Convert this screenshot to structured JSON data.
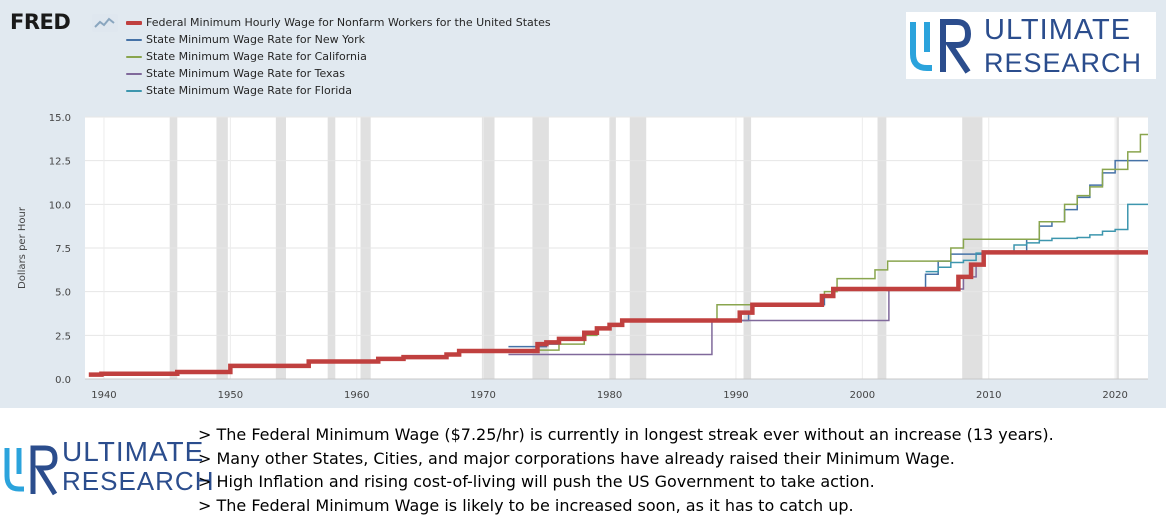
{
  "fred_logo": "FRED",
  "brand": {
    "line1": "ULTIMATE",
    "line2": "RESEARCH",
    "color": "#2b4d8d",
    "accent": "#2ba3dc"
  },
  "notes": [
    "> The Federal Minimum Wage ($7.25/hr) is currently in longest streak ever without an increase (13 years).",
    "> Many other States, Cities, and major corporations have already raised their Minimum Wage.",
    "> High Inflation and rising cost-of-living will push the US Government to take action.",
    "> The Federal Minimum Wage is likely to be increased soon, as it has to catch up."
  ],
  "chart_data": {
    "type": "line",
    "title": "",
    "xlabel": "",
    "ylabel": "Dollars per Hour",
    "xlim": [
      1938.5,
      2022.6
    ],
    "ylim": [
      0,
      15
    ],
    "x_ticks": [
      1940,
      1950,
      1960,
      1970,
      1980,
      1990,
      2000,
      2010,
      2020
    ],
    "y_ticks": [
      0.0,
      2.5,
      5.0,
      7.5,
      10.0,
      12.5,
      15.0
    ],
    "grid": true,
    "legend_position": "top-left",
    "step": true,
    "recession_shading": [
      [
        1945.2,
        1945.8
      ],
      [
        1948.9,
        1949.8
      ],
      [
        1953.6,
        1954.4
      ],
      [
        1957.7,
        1958.3
      ],
      [
        1960.3,
        1961.1
      ],
      [
        1969.9,
        1970.9
      ],
      [
        1973.9,
        1975.2
      ],
      [
        1980.0,
        1980.5
      ],
      [
        1981.6,
        1982.9
      ],
      [
        1990.6,
        1991.2
      ],
      [
        2001.2,
        2001.9
      ],
      [
        2007.9,
        2009.5
      ],
      [
        2020.1,
        2020.3
      ]
    ],
    "series": [
      {
        "name": "Federal Minimum Hourly Wage for Nonfarm Workers for the United States",
        "color": "#c0403f",
        "width": 4.5,
        "points": [
          [
            1938.8,
            0.25
          ],
          [
            1939.8,
            0.3
          ],
          [
            1945.8,
            0.4
          ],
          [
            1950.0,
            0.75
          ],
          [
            1956.2,
            1.0
          ],
          [
            1961.7,
            1.15
          ],
          [
            1963.7,
            1.25
          ],
          [
            1967.1,
            1.4
          ],
          [
            1968.1,
            1.6
          ],
          [
            1974.3,
            2.0
          ],
          [
            1975.0,
            2.1
          ],
          [
            1976.0,
            2.3
          ],
          [
            1978.0,
            2.65
          ],
          [
            1979.0,
            2.9
          ],
          [
            1980.0,
            3.1
          ],
          [
            1981.0,
            3.35
          ],
          [
            1990.3,
            3.8
          ],
          [
            1991.3,
            4.25
          ],
          [
            1996.8,
            4.75
          ],
          [
            1997.7,
            5.15
          ],
          [
            2007.6,
            5.85
          ],
          [
            2008.6,
            6.55
          ],
          [
            2009.6,
            7.25
          ],
          [
            2022.6,
            7.25
          ]
        ]
      },
      {
        "name": "State Minimum Wage Rate for New York",
        "color": "#4572a7",
        "width": 1.5,
        "points": [
          [
            1972.0,
            1.85
          ],
          [
            1975.0,
            2.0
          ],
          [
            1976.0,
            2.3
          ],
          [
            1978.0,
            2.65
          ],
          [
            1979.0,
            2.9
          ],
          [
            1980.0,
            3.1
          ],
          [
            1981.0,
            3.35
          ],
          [
            1991.0,
            3.8
          ],
          [
            1991.3,
            4.25
          ],
          [
            1997.0,
            4.75
          ],
          [
            1997.7,
            5.15
          ],
          [
            2005.0,
            6.0
          ],
          [
            2006.0,
            6.75
          ],
          [
            2007.0,
            7.15
          ],
          [
            2009.6,
            7.25
          ],
          [
            2013.0,
            8.0
          ],
          [
            2014.0,
            8.75
          ],
          [
            2015.0,
            9.0
          ],
          [
            2016.0,
            9.7
          ],
          [
            2017.0,
            10.4
          ],
          [
            2018.0,
            11.1
          ],
          [
            2019.0,
            11.8
          ],
          [
            2020.0,
            12.5
          ],
          [
            2022.6,
            12.5
          ]
        ]
      },
      {
        "name": "State Minimum Wage Rate for California",
        "color": "#89a54e",
        "width": 1.5,
        "points": [
          [
            1968.0,
            1.65
          ],
          [
            1974.0,
            1.65
          ],
          [
            1976.0,
            2.0
          ],
          [
            1978.0,
            2.5
          ],
          [
            1979.0,
            2.9
          ],
          [
            1980.0,
            3.1
          ],
          [
            1981.0,
            3.35
          ],
          [
            1988.0,
            3.35
          ],
          [
            1988.5,
            4.25
          ],
          [
            1996.8,
            4.75
          ],
          [
            1997.0,
            5.0
          ],
          [
            1998.0,
            5.75
          ],
          [
            2001.0,
            6.25
          ],
          [
            2002.0,
            6.75
          ],
          [
            2007.0,
            7.5
          ],
          [
            2008.0,
            8.0
          ],
          [
            2014.0,
            9.0
          ],
          [
            2016.0,
            10.0
          ],
          [
            2017.0,
            10.5
          ],
          [
            2018.0,
            11.0
          ],
          [
            2019.0,
            12.0
          ],
          [
            2021.0,
            13.0
          ],
          [
            2022.0,
            14.0
          ],
          [
            2022.6,
            14.0
          ]
        ]
      },
      {
        "name": "State Minimum Wage Rate for Texas",
        "color": "#80699b",
        "width": 1.5,
        "points": [
          [
            1972.0,
            1.4
          ],
          [
            1988.0,
            1.4
          ],
          [
            1988.1,
            3.35
          ],
          [
            2002.0,
            3.35
          ],
          [
            2002.1,
            5.15
          ],
          [
            2008.0,
            5.85
          ],
          [
            2009.0,
            6.55
          ],
          [
            2009.6,
            7.25
          ],
          [
            2022.6,
            7.25
          ]
        ]
      },
      {
        "name": "State Minimum Wage Rate for Florida",
        "color": "#3d96ae",
        "width": 1.5,
        "points": [
          [
            2005.0,
            6.15
          ],
          [
            2006.0,
            6.4
          ],
          [
            2007.0,
            6.67
          ],
          [
            2008.0,
            6.79
          ],
          [
            2009.0,
            7.21
          ],
          [
            2009.6,
            7.25
          ],
          [
            2011.0,
            7.31
          ],
          [
            2012.0,
            7.67
          ],
          [
            2013.0,
            7.79
          ],
          [
            2014.0,
            7.93
          ],
          [
            2015.0,
            8.05
          ],
          [
            2017.0,
            8.1
          ],
          [
            2018.0,
            8.25
          ],
          [
            2019.0,
            8.46
          ],
          [
            2020.0,
            8.56
          ],
          [
            2021.0,
            10.0
          ],
          [
            2022.6,
            10.0
          ]
        ]
      }
    ]
  }
}
